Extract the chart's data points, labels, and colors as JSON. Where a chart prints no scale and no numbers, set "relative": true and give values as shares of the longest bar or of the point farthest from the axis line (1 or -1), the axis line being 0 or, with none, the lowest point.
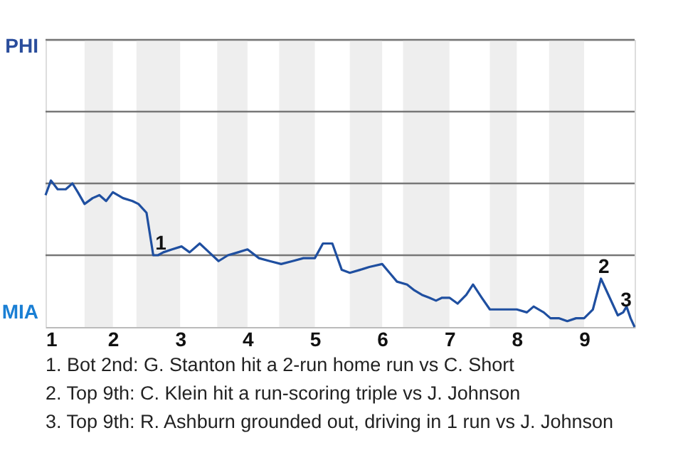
{
  "chart_data": {
    "type": "line",
    "relative": true,
    "x": [
      1.0,
      1.08,
      1.18,
      1.3,
      1.4,
      1.48,
      1.58,
      1.7,
      1.8,
      1.9,
      2.0,
      2.15,
      2.29,
      2.38,
      2.5,
      2.6,
      2.67,
      2.75,
      2.88,
      3.02,
      3.14,
      3.29,
      3.43,
      3.57,
      3.71,
      3.86,
      4.0,
      4.17,
      4.33,
      4.5,
      4.67,
      4.83,
      5.0,
      5.12,
      5.26,
      5.4,
      5.52,
      5.67,
      5.81,
      6.0,
      6.11,
      6.22,
      6.37,
      6.48,
      6.59,
      6.7,
      6.8,
      6.89,
      7.0,
      7.12,
      7.25,
      7.35,
      7.48,
      7.6,
      7.75,
      7.88,
      8.0,
      8.15,
      8.25,
      8.4,
      8.5,
      8.63,
      8.75,
      8.88,
      9.0,
      9.13,
      9.25,
      9.38,
      9.5,
      9.58,
      9.63,
      9.69,
      9.75
    ],
    "series": [
      {
        "color": "#1f4fa0",
        "values": [
          0.9,
          1,
          0.94,
          0.94,
          0.98,
          0.92,
          0.84,
          0.88,
          0.9,
          0.86,
          0.92,
          0.88,
          0.86,
          0.84,
          0.78,
          0.49,
          0.49,
          0.51,
          0.53,
          0.55,
          0.51,
          0.57,
          0.51,
          0.45,
          0.49,
          0.51,
          0.53,
          0.47,
          0.45,
          0.43,
          0.45,
          0.47,
          0.47,
          0.57,
          0.57,
          0.39,
          0.37,
          0.39,
          0.41,
          0.43,
          0.37,
          0.31,
          0.29,
          0.25,
          0.22,
          0.2,
          0.18,
          0.2,
          0.2,
          0.16,
          0.22,
          0.29,
          0.2,
          0.12,
          0.12,
          0.12,
          0.12,
          0.1,
          0.14,
          0.1,
          0.06,
          0.06,
          0.04,
          0.06,
          0.06,
          0.12,
          0.33,
          0.2,
          0.08,
          0.1,
          0.14,
          0.06,
          0
        ]
      }
    ],
    "xlim": [
      1,
      9.75
    ],
    "xticks": [
      1,
      2,
      3,
      4,
      5,
      6,
      7,
      8,
      9
    ],
    "marker": "none",
    "line_style": "solid",
    "ref_lines": [
      {
        "axis": "y",
        "value": 0.49,
        "color": "#777777"
      },
      {
        "axis": "y",
        "value": 0.98,
        "color": "#777777"
      },
      {
        "axis": "y",
        "value": 1.47,
        "color": "#777777"
      },
      {
        "axis": "y",
        "value": 1.96,
        "color": "#777777"
      }
    ],
    "bands": [
      {
        "axis": "x",
        "from": 1.58,
        "to": 2,
        "color": "#eeeeee"
      },
      {
        "axis": "x",
        "from": 2.35,
        "to": 3,
        "color": "#eeeeee"
      },
      {
        "axis": "x",
        "from": 3.55,
        "to": 4,
        "color": "#eeeeee"
      },
      {
        "axis": "x",
        "from": 4.47,
        "to": 5,
        "color": "#eeeeee"
      },
      {
        "axis": "x",
        "from": 5.52,
        "to": 6,
        "color": "#eeeeee"
      },
      {
        "axis": "x",
        "from": 6.31,
        "to": 7,
        "color": "#eeeeee"
      },
      {
        "axis": "x",
        "from": 7.6,
        "to": 8,
        "color": "#eeeeee"
      },
      {
        "axis": "x",
        "from": 8.48,
        "to": 9,
        "color": "#eeeeee"
      }
    ],
    "annotations": [
      "PHI",
      "MIA",
      {
        "text": "1",
        "x": 2.67,
        "y": 0.49
      },
      {
        "text": "2",
        "x": 9.25,
        "y": 0.33
      },
      {
        "text": "3",
        "x": 9.58,
        "y": 0.1
      },
      "1. Bot 2nd: G. Stanton hit a 2-run home run vs C. Short",
      "2. Top 9th: C. Klein hit a run-scoring triple vs J. Johnson",
      "3. Top 9th: R. Ashburn grounded out, driving in 1 run vs J. Johnson"
    ]
  }
}
